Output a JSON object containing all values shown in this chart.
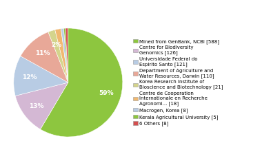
{
  "labels": [
    "Mined from GenBank, NCBI [588]",
    "Centre for Biodiversity\nGenomics [126]",
    "Universidade Federal do\nEspirito Santo [121]",
    "Department of Agriculture and\nWater Resources, Darwin [110]",
    "Korea Research Institute of\nBioscience and Biotechnology [21]",
    "Centre de Cooperation\nInternationale en Recherche\nAgronomi... [18]",
    "Macrogen, Korea [8]",
    "Kerala Agricultural University [5]",
    "6 Others [8]"
  ],
  "values": [
    588,
    126,
    121,
    110,
    21,
    18,
    8,
    5,
    8
  ],
  "colors": [
    "#8dc63f",
    "#d4b8d4",
    "#b8cce4",
    "#e8a898",
    "#d4d48c",
    "#f0b870",
    "#b8cce4",
    "#8dc63f",
    "#d45050"
  ],
  "figsize": [
    3.8,
    2.4
  ],
  "dpi": 100,
  "pct_threshold": 2
}
